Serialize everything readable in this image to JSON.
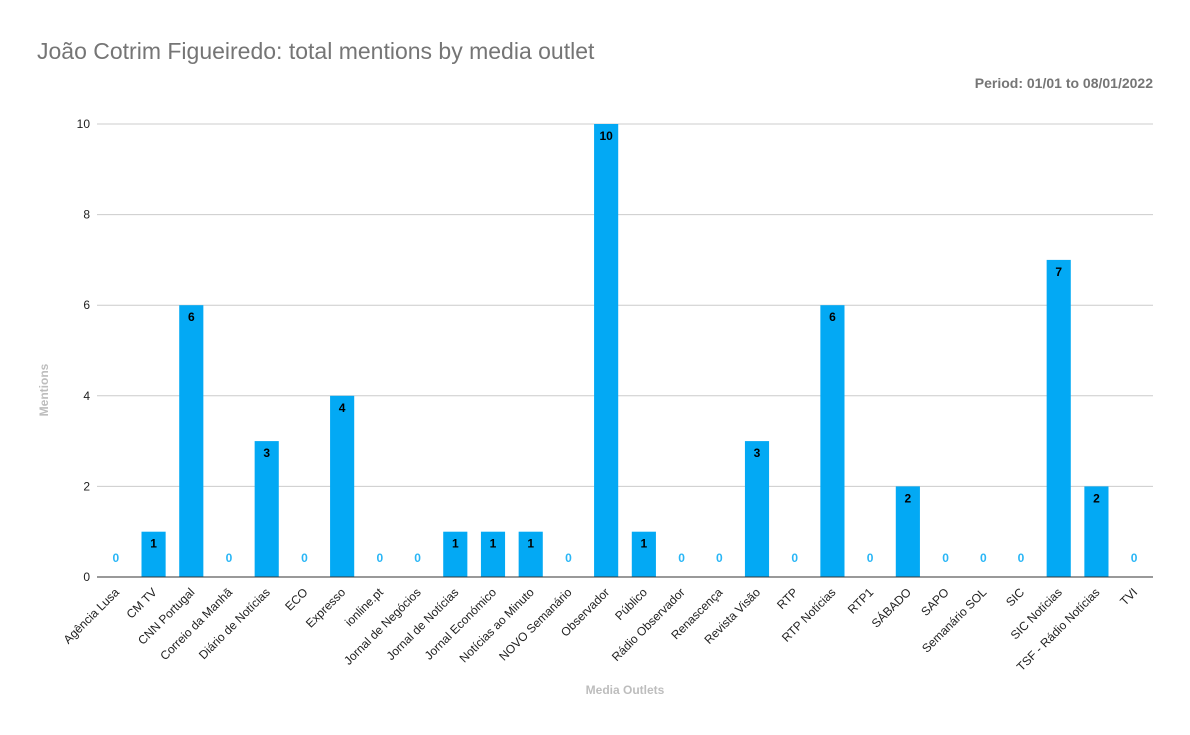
{
  "chart_data": {
    "type": "bar",
    "title": "João Cotrim Figueiredo: total mentions by media outlet",
    "subtitle": "Period: 01/01 to 08/01/2022",
    "xlabel": "Media Outlets",
    "ylabel": "Mentions",
    "ylim": [
      0,
      10
    ],
    "yticks": [
      "0",
      "2",
      "4",
      "6",
      "8",
      "10"
    ],
    "grid": true,
    "legend": "none",
    "colors": {
      "bar": "#03a9f4",
      "zero_label": "#29b6f6",
      "value_label": "#000000",
      "axis_text": "#212121",
      "axis_title": "#bdbdbd",
      "grid": "#cccccc"
    },
    "categories": [
      "Agência Lusa",
      "CM TV",
      "CNN Portugal",
      "Correio da Manhã",
      "Diário de Notícias",
      "ECO",
      "Expresso",
      "ionline.pt",
      "Jornal de Negócios",
      "Jornal de Notícias",
      "Jornal Económico",
      "Notícias ao Minuto",
      "NOVO Semanário",
      "Observador",
      "Público",
      "Rádio Observador",
      "Renascença",
      "Revista Visão",
      "RTP",
      "RTP Notícias",
      "RTP1",
      "SÁBADO",
      "SAPO",
      "Semanário SOL",
      "SIC",
      "SIC Notícias",
      "TSF - Rádio Notícias",
      "TVI"
    ],
    "values": [
      0,
      1,
      6,
      0,
      3,
      0,
      4,
      0,
      0,
      1,
      1,
      1,
      0,
      10,
      1,
      0,
      0,
      3,
      0,
      6,
      0,
      2,
      0,
      0,
      0,
      7,
      2,
      0
    ]
  }
}
